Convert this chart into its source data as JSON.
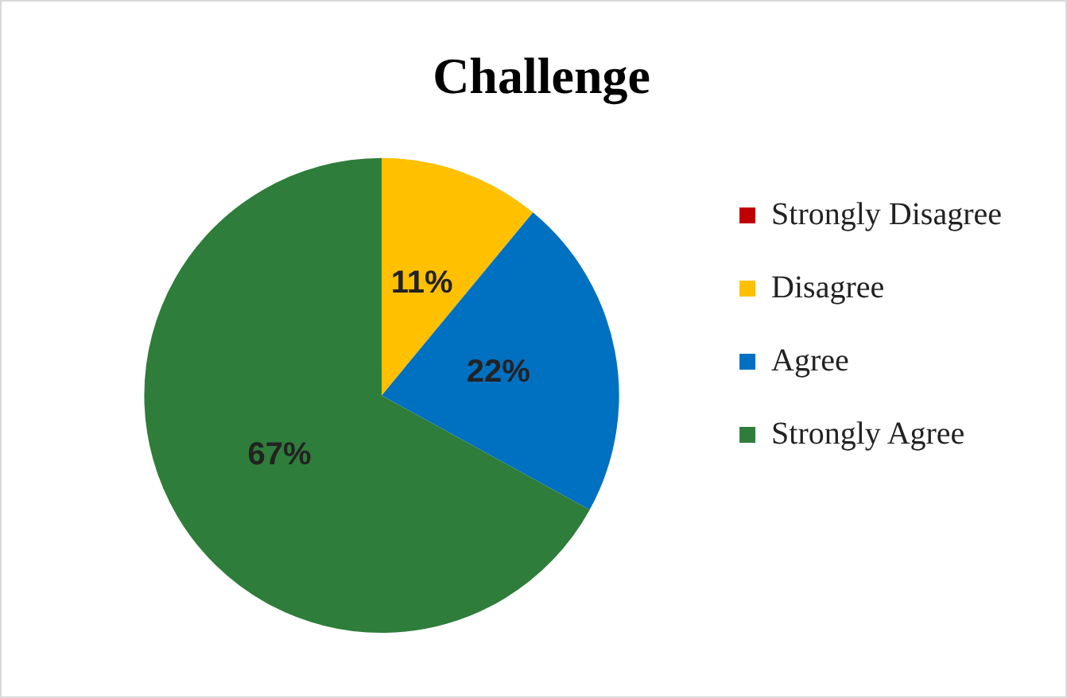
{
  "chart_data": {
    "type": "pie",
    "title": "Challenge",
    "categories": [
      "Strongly Disagree",
      "Disagree",
      "Agree",
      "Strongly Agree"
    ],
    "values": [
      0,
      11,
      22,
      67
    ],
    "colors": [
      "#c00000",
      "#ffc000",
      "#0070c0",
      "#2e7d3a"
    ],
    "value_labels": [
      null,
      "11%",
      "22%",
      "67%"
    ],
    "legend": "right"
  }
}
